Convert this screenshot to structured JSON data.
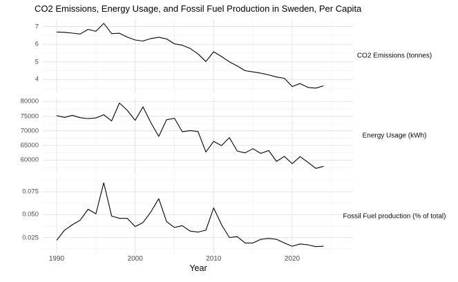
{
  "title": "CO2 Emissions, Energy Usage, and Fossil Fuel Production in Sweden, Per Capita",
  "x_axis": {
    "label": "Year",
    "major_ticks": [
      1990,
      2000,
      2010,
      2020
    ],
    "major_tick_labels": [
      "1990",
      "2000",
      "2010",
      "2020"
    ],
    "range": [
      1988,
      2026
    ]
  },
  "colors": {
    "line": "#000000",
    "grid_major": "#e4e4e4",
    "grid_minor": "#f2f2f2",
    "axis_text": "#4d4d4d",
    "background": "#ffffff"
  },
  "chart_data": [
    {
      "type": "line",
      "id": "co2",
      "name": "CO2 Emissions (tonnes)",
      "legend_position": "right-of-panel",
      "grid": true,
      "x": [
        1990,
        1991,
        1992,
        1993,
        1994,
        1995,
        1996,
        1997,
        1998,
        1999,
        2000,
        2001,
        2002,
        2003,
        2004,
        2005,
        2006,
        2007,
        2008,
        2009,
        2010,
        2011,
        2012,
        2013,
        2014,
        2015,
        2016,
        2017,
        2018,
        2019,
        2020,
        2021,
        2022,
        2023,
        2024
      ],
      "values": [
        6.69,
        6.67,
        6.63,
        6.58,
        6.84,
        6.73,
        7.18,
        6.6,
        6.62,
        6.4,
        6.24,
        6.18,
        6.32,
        6.39,
        6.3,
        6.02,
        5.94,
        5.76,
        5.45,
        5.02,
        5.57,
        5.3,
        5.0,
        4.77,
        4.5,
        4.43,
        4.36,
        4.26,
        4.14,
        4.07,
        3.6,
        3.77,
        3.55,
        3.51,
        3.64
      ],
      "yticks": [
        7,
        6,
        5,
        4
      ],
      "ytick_labels": [
        "7",
        "6",
        "5",
        "4"
      ],
      "ylim": [
        3.3,
        7.4
      ]
    },
    {
      "type": "line",
      "id": "energy",
      "name": "Energy Usage (kWh)",
      "legend_position": "right-of-panel",
      "grid": true,
      "x": [
        1990,
        1991,
        1992,
        1993,
        1994,
        1995,
        1996,
        1997,
        1998,
        1999,
        2000,
        2001,
        2002,
        2003,
        2004,
        2005,
        2006,
        2007,
        2008,
        2009,
        2010,
        2011,
        2012,
        2013,
        2014,
        2015,
        2016,
        2017,
        2018,
        2019,
        2020,
        2021,
        2022,
        2023,
        2024
      ],
      "values": [
        75200,
        74600,
        75300,
        74500,
        74200,
        74400,
        75500,
        73400,
        79500,
        77000,
        73600,
        78200,
        72800,
        68100,
        73800,
        74300,
        69700,
        70100,
        69800,
        62800,
        66400,
        65000,
        67700,
        63100,
        62500,
        63900,
        62300,
        63300,
        59600,
        61300,
        58800,
        61200,
        59300,
        57200,
        57900
      ],
      "yticks": [
        80000,
        75000,
        70000,
        65000,
        60000
      ],
      "ytick_labels": [
        "80000",
        "75000",
        "70000",
        "65000",
        "60000"
      ],
      "ylim": [
        56500,
        81500
      ]
    },
    {
      "type": "line",
      "id": "fossil",
      "name": "Fossil Fuel production (% of total)",
      "legend_position": "right-of-panel",
      "grid": true,
      "x": [
        1990,
        1991,
        1992,
        1993,
        1994,
        1995,
        1996,
        1997,
        1998,
        1999,
        2000,
        2001,
        2002,
        2003,
        2004,
        2005,
        2006,
        2007,
        2008,
        2009,
        2010,
        2011,
        2012,
        2013,
        2014,
        2015,
        2016,
        2017,
        2018,
        2019,
        2020,
        2021,
        2022,
        2023,
        2024
      ],
      "values": [
        0.022,
        0.033,
        0.039,
        0.044,
        0.056,
        0.051,
        0.085,
        0.0485,
        0.046,
        0.046,
        0.037,
        0.0415,
        0.053,
        0.0675,
        0.0425,
        0.036,
        0.038,
        0.032,
        0.031,
        0.033,
        0.0575,
        0.039,
        0.025,
        0.026,
        0.019,
        0.019,
        0.023,
        0.024,
        0.023,
        0.019,
        0.0155,
        0.018,
        0.017,
        0.015,
        0.0155
      ],
      "yticks": [
        0.075,
        0.05,
        0.025
      ],
      "ytick_labels": [
        "0.075",
        "0.050",
        "0.025"
      ],
      "ylim": [
        0.01,
        0.09
      ]
    }
  ]
}
